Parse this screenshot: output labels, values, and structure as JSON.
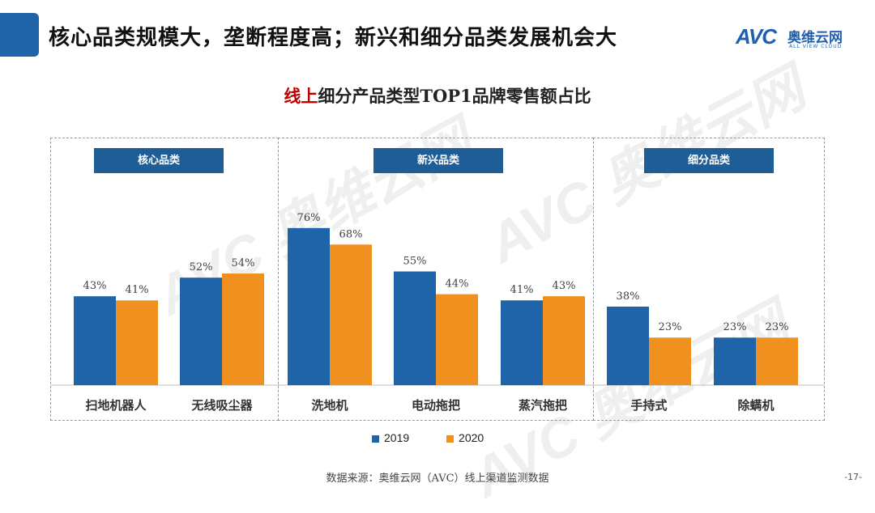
{
  "header": {
    "title": "核心品类规模大，垄断程度高；新兴和细分品类发展机会大",
    "accent_color": "#1f63a8"
  },
  "brand": {
    "mark": "AVC",
    "name_cn": "奥维云网",
    "name_en": "ALL VIEW CLOUD"
  },
  "chart_title": {
    "highlight": "线上",
    "rest": "细分产品类型TOP1品牌零售额占比"
  },
  "groups": [
    {
      "label": "核心品类"
    },
    {
      "label": "新兴品类"
    },
    {
      "label": "细分品类"
    }
  ],
  "chart_data": {
    "type": "bar",
    "title": "线上细分产品类型TOP1品牌零售额占比",
    "categories": [
      "扫地机器人",
      "无线吸尘器",
      "洗地机",
      "电动拖把",
      "蒸汽拖把",
      "手持式",
      "除螨机"
    ],
    "category_groups": [
      "核心品类",
      "核心品类",
      "新兴品类",
      "新兴品类",
      "新兴品类",
      "细分品类",
      "细分品类"
    ],
    "series": [
      {
        "name": "2019",
        "color": "#1f63a8",
        "values": [
          43,
          52,
          76,
          55,
          41,
          38,
          23
        ]
      },
      {
        "name": "2020",
        "color": "#f0901e",
        "values": [
          41,
          54,
          68,
          44,
          43,
          23,
          23
        ]
      }
    ],
    "unit": "%",
    "ylim": [
      0,
      80
    ],
    "grid": false,
    "legend_position": "bottom-center"
  },
  "footer": {
    "source": "数据来源：奥维云网（AVC）线上渠道监测数据",
    "page": "-17-"
  }
}
